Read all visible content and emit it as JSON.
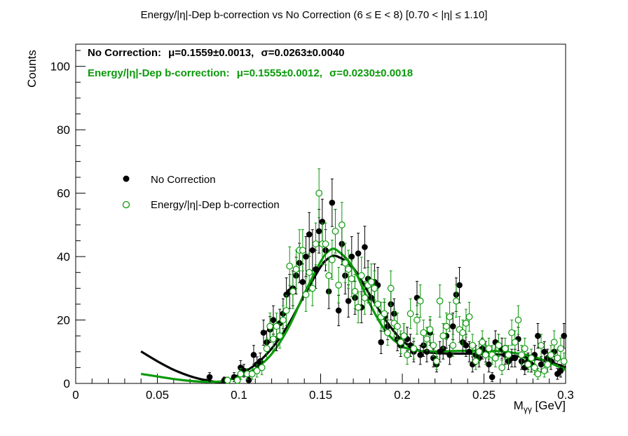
{
  "chart_data": {
    "type": "scatter",
    "title": "Energy/|η|-Dep b-correction vs No Correction   (6 ≤ E < 8)   [0.70 < |η| ≤ 1.10]",
    "xlabel": "M",
    "xlabel_sub": "γγ",
    "xlabel_unit": " [GeV]",
    "ylabel": "Counts",
    "xlim": [
      0,
      0.3
    ],
    "ylim": [
      0,
      107
    ],
    "x_ticks": [
      "0",
      "0.05",
      "0.1",
      "0.15",
      "0.2",
      "0.25",
      "0.3"
    ],
    "y_ticks": [
      "0",
      "20",
      "40",
      "60",
      "80",
      "100"
    ],
    "grid": false,
    "legend_position": "left-middle",
    "fit_text": [
      {
        "label": "No Correction:",
        "mu_text": "μ=0.1559±0.0013,",
        "sigma_text": "σ=0.0263±0.0040",
        "color": "#000000"
      },
      {
        "label": "Energy/|η|-Dep b-correction:",
        "mu_text": "μ=0.1555±0.0012,",
        "sigma_text": "σ=0.0230±0.0018",
        "color": "#0a9a0a"
      }
    ],
    "series": [
      {
        "name": "No Correction",
        "marker": "filled-circle",
        "color": "#000000",
        "points": [
          [
            0.082,
            2,
            1.4
          ],
          [
            0.091,
            1,
            1
          ],
          [
            0.097,
            2,
            1.4
          ],
          [
            0.101,
            5,
            2.2
          ],
          [
            0.103,
            4,
            2
          ],
          [
            0.106,
            1,
            1
          ],
          [
            0.109,
            9,
            3
          ],
          [
            0.111,
            6,
            2.4
          ],
          [
            0.113,
            7,
            2.6
          ],
          [
            0.115,
            16,
            4
          ],
          [
            0.117,
            13,
            3.6
          ],
          [
            0.119,
            17,
            4.1
          ],
          [
            0.121,
            20,
            4.5
          ],
          [
            0.123,
            14,
            3.7
          ],
          [
            0.125,
            19,
            4.4
          ],
          [
            0.127,
            22,
            4.7
          ],
          [
            0.129,
            28,
            5.3
          ],
          [
            0.131,
            29,
            5.4
          ],
          [
            0.133,
            30,
            5.5
          ],
          [
            0.135,
            34,
            5.8
          ],
          [
            0.137,
            38,
            6.2
          ],
          [
            0.139,
            32,
            5.7
          ],
          [
            0.141,
            40,
            6.3
          ],
          [
            0.143,
            47,
            6.9
          ],
          [
            0.145,
            42,
            6.5
          ],
          [
            0.147,
            36,
            6
          ],
          [
            0.149,
            48,
            6.9
          ],
          [
            0.151,
            51,
            7.1
          ],
          [
            0.153,
            42,
            6.5
          ],
          [
            0.155,
            29,
            5.4
          ],
          [
            0.157,
            57,
            7.5
          ],
          [
            0.159,
            48,
            6.9
          ],
          [
            0.161,
            23,
            4.8
          ],
          [
            0.163,
            44,
            6.6
          ],
          [
            0.165,
            34,
            5.8
          ],
          [
            0.167,
            26,
            5.1
          ],
          [
            0.169,
            40,
            6.3
          ],
          [
            0.171,
            27,
            5.2
          ],
          [
            0.173,
            41,
            6.4
          ],
          [
            0.175,
            24,
            4.9
          ],
          [
            0.177,
            43,
            6.6
          ],
          [
            0.179,
            33,
            5.7
          ],
          [
            0.181,
            27,
            5.2
          ],
          [
            0.183,
            32,
            5.7
          ],
          [
            0.185,
            31,
            5.6
          ],
          [
            0.187,
            13,
            3.6
          ],
          [
            0.189,
            21,
            4.6
          ],
          [
            0.191,
            18,
            4.2
          ],
          [
            0.193,
            25,
            5
          ],
          [
            0.195,
            22,
            4.7
          ],
          [
            0.197,
            14,
            3.7
          ],
          [
            0.199,
            12,
            3.5
          ],
          [
            0.201,
            15,
            3.9
          ],
          [
            0.203,
            14,
            3.7
          ],
          [
            0.205,
            12,
            3.5
          ],
          [
            0.207,
            10,
            3.2
          ],
          [
            0.209,
            27,
            5.2
          ],
          [
            0.211,
            9,
            3
          ],
          [
            0.213,
            12,
            3.5
          ],
          [
            0.215,
            10,
            3.2
          ],
          [
            0.217,
            16,
            4
          ],
          [
            0.219,
            8,
            2.8
          ],
          [
            0.221,
            6,
            2.4
          ],
          [
            0.223,
            10,
            3.2
          ],
          [
            0.225,
            11,
            3.3
          ],
          [
            0.227,
            15,
            3.9
          ],
          [
            0.229,
            9,
            3
          ],
          [
            0.231,
            18,
            4.2
          ],
          [
            0.233,
            28,
            5.3
          ],
          [
            0.235,
            31,
            5.6
          ],
          [
            0.237,
            13,
            3.6
          ],
          [
            0.239,
            12,
            3.5
          ],
          [
            0.241,
            10,
            3.2
          ],
          [
            0.243,
            6,
            2.4
          ],
          [
            0.245,
            9,
            3
          ],
          [
            0.247,
            8,
            2.8
          ],
          [
            0.249,
            11,
            3.3
          ],
          [
            0.251,
            10,
            3.2
          ],
          [
            0.253,
            6,
            2.4
          ],
          [
            0.255,
            2,
            1.4
          ],
          [
            0.257,
            13,
            3.6
          ],
          [
            0.259,
            12,
            3.5
          ],
          [
            0.261,
            11,
            3.3
          ],
          [
            0.263,
            9,
            3
          ],
          [
            0.265,
            7,
            2.6
          ],
          [
            0.267,
            8,
            2.8
          ],
          [
            0.269,
            8,
            2.8
          ],
          [
            0.271,
            14,
            3.7
          ],
          [
            0.273,
            7,
            2.6
          ],
          [
            0.275,
            5,
            2.2
          ],
          [
            0.277,
            7,
            2.6
          ],
          [
            0.279,
            6,
            2.4
          ],
          [
            0.281,
            9,
            3
          ],
          [
            0.283,
            15,
            3.9
          ],
          [
            0.285,
            6,
            2.4
          ],
          [
            0.287,
            10,
            3.2
          ],
          [
            0.289,
            8,
            2.8
          ],
          [
            0.291,
            7,
            2.6
          ],
          [
            0.293,
            10,
            3.2
          ],
          [
            0.295,
            3,
            1.7
          ],
          [
            0.297,
            4,
            2
          ],
          [
            0.299,
            15,
            3.9
          ]
        ],
        "fit_curve": {
          "x": [
            0.04,
            0.05,
            0.06,
            0.07,
            0.08,
            0.09,
            0.1,
            0.11,
            0.12,
            0.13,
            0.14,
            0.15,
            0.155,
            0.16,
            0.17,
            0.18,
            0.19,
            0.2,
            0.21,
            0.22,
            0.23,
            0.24,
            0.25,
            0.26,
            0.27,
            0.28,
            0.29,
            0.3
          ],
          "y": [
            10.1,
            7,
            4.3,
            2.3,
            1.0,
            0.5,
            2.7,
            5.9,
            11,
            18.3,
            27.8,
            36.8,
            39.5,
            40.1,
            36.4,
            28.0,
            19.8,
            13.5,
            10.4,
            9.6,
            9.4,
            9.4,
            9.3,
            9.1,
            8.6,
            7.9,
            6.8,
            5.1
          ]
        }
      },
      {
        "name": "Energy/|η|-Dep b-correction",
        "marker": "open-circle",
        "color": "#0a9a0a",
        "points": [
          [
            0.093,
            1,
            1
          ],
          [
            0.099,
            1,
            1
          ],
          [
            0.101,
            3,
            1.7
          ],
          [
            0.105,
            3,
            1.7
          ],
          [
            0.108,
            3,
            1.7
          ],
          [
            0.111,
            4,
            2
          ],
          [
            0.114,
            5,
            2.2
          ],
          [
            0.117,
            11,
            3.3
          ],
          [
            0.119,
            18,
            4.2
          ],
          [
            0.121,
            14,
            3.7
          ],
          [
            0.123,
            18,
            4.2
          ],
          [
            0.125,
            15,
            3.9
          ],
          [
            0.127,
            20,
            4.5
          ],
          [
            0.129,
            23,
            4.8
          ],
          [
            0.131,
            37,
            6.1
          ],
          [
            0.133,
            29,
            5.4
          ],
          [
            0.135,
            36,
            6
          ],
          [
            0.137,
            42,
            6.5
          ],
          [
            0.139,
            42,
            6.5
          ],
          [
            0.141,
            28,
            5.3
          ],
          [
            0.143,
            35,
            5.9
          ],
          [
            0.145,
            30,
            5.5
          ],
          [
            0.147,
            44,
            6.6
          ],
          [
            0.149,
            60,
            7.7
          ],
          [
            0.151,
            44,
            6.6
          ],
          [
            0.153,
            44,
            6.6
          ],
          [
            0.155,
            34,
            5.8
          ],
          [
            0.157,
            39,
            6.2
          ],
          [
            0.159,
            48,
            6.9
          ],
          [
            0.161,
            31,
            5.6
          ],
          [
            0.163,
            50,
            7.1
          ],
          [
            0.165,
            38,
            6.2
          ],
          [
            0.167,
            36,
            6
          ],
          [
            0.169,
            33,
            5.7
          ],
          [
            0.171,
            29,
            5.4
          ],
          [
            0.173,
            24,
            4.9
          ],
          [
            0.175,
            34,
            5.8
          ],
          [
            0.177,
            27,
            5.2
          ],
          [
            0.179,
            31,
            5.6
          ],
          [
            0.181,
            32,
            5.7
          ],
          [
            0.183,
            30,
            5.5
          ],
          [
            0.185,
            25,
            5
          ],
          [
            0.187,
            21,
            4.6
          ],
          [
            0.189,
            22,
            4.7
          ],
          [
            0.191,
            16,
            4
          ],
          [
            0.193,
            30,
            5.5
          ],
          [
            0.195,
            19,
            4.4
          ],
          [
            0.197,
            18,
            4.2
          ],
          [
            0.199,
            13,
            3.6
          ],
          [
            0.201,
            15,
            3.9
          ],
          [
            0.203,
            9,
            3
          ],
          [
            0.205,
            22,
            4.7
          ],
          [
            0.207,
            11,
            3.3
          ],
          [
            0.209,
            20,
            4.5
          ],
          [
            0.211,
            26,
            5.1
          ],
          [
            0.213,
            16,
            4
          ],
          [
            0.215,
            14,
            3.7
          ],
          [
            0.217,
            17,
            4.1
          ],
          [
            0.219,
            12,
            3.5
          ],
          [
            0.221,
            7,
            2.6
          ],
          [
            0.223,
            26,
            5.1
          ],
          [
            0.225,
            15,
            3.9
          ],
          [
            0.227,
            18,
            4.2
          ],
          [
            0.229,
            21,
            4.6
          ],
          [
            0.231,
            12,
            3.5
          ],
          [
            0.233,
            26,
            5.1
          ],
          [
            0.235,
            17,
            4.1
          ],
          [
            0.237,
            16,
            4
          ],
          [
            0.239,
            19,
            4.4
          ],
          [
            0.241,
            21,
            4.6
          ],
          [
            0.243,
            12,
            3.5
          ],
          [
            0.245,
            7,
            2.6
          ],
          [
            0.247,
            10,
            3.2
          ],
          [
            0.249,
            13,
            3.6
          ],
          [
            0.251,
            9,
            3
          ],
          [
            0.253,
            11,
            3.3
          ],
          [
            0.255,
            9,
            3
          ],
          [
            0.257,
            8,
            2.8
          ],
          [
            0.259,
            12,
            3.5
          ],
          [
            0.261,
            5,
            2.2
          ],
          [
            0.263,
            11,
            3.3
          ],
          [
            0.265,
            9,
            3
          ],
          [
            0.267,
            16,
            4
          ],
          [
            0.269,
            13,
            3.6
          ],
          [
            0.271,
            20,
            4.5
          ],
          [
            0.273,
            9,
            3
          ],
          [
            0.275,
            11,
            3.3
          ],
          [
            0.277,
            6,
            2.4
          ],
          [
            0.279,
            8,
            2.8
          ],
          [
            0.281,
            5,
            2.2
          ],
          [
            0.283,
            3,
            1.7
          ],
          [
            0.285,
            12,
            3.5
          ],
          [
            0.287,
            4,
            2
          ],
          [
            0.289,
            6,
            2.4
          ],
          [
            0.291,
            9,
            3
          ],
          [
            0.293,
            13,
            3.6
          ],
          [
            0.295,
            8,
            2.8
          ],
          [
            0.297,
            11,
            3.3
          ],
          [
            0.299,
            7,
            2.6
          ]
        ],
        "fit_curve": {
          "x": [
            0.04,
            0.05,
            0.06,
            0.07,
            0.08,
            0.09,
            0.1,
            0.11,
            0.12,
            0.13,
            0.14,
            0.15,
            0.155,
            0.16,
            0.17,
            0.18,
            0.19,
            0.2,
            0.21,
            0.22,
            0.23,
            0.24,
            0.25,
            0.26,
            0.27,
            0.28,
            0.29,
            0.3
          ],
          "y": [
            3.0,
            2.2,
            1.4,
            0.8,
            0.5,
            0.7,
            2.2,
            4.6,
            9.3,
            17.3,
            28.3,
            38.4,
            41.8,
            42.0,
            36.4,
            25.2,
            16.3,
            11.7,
            10.3,
            10.1,
            10.2,
            10.3,
            10.3,
            10.1,
            9.5,
            8.5,
            6.6,
            4.3
          ]
        }
      }
    ]
  }
}
